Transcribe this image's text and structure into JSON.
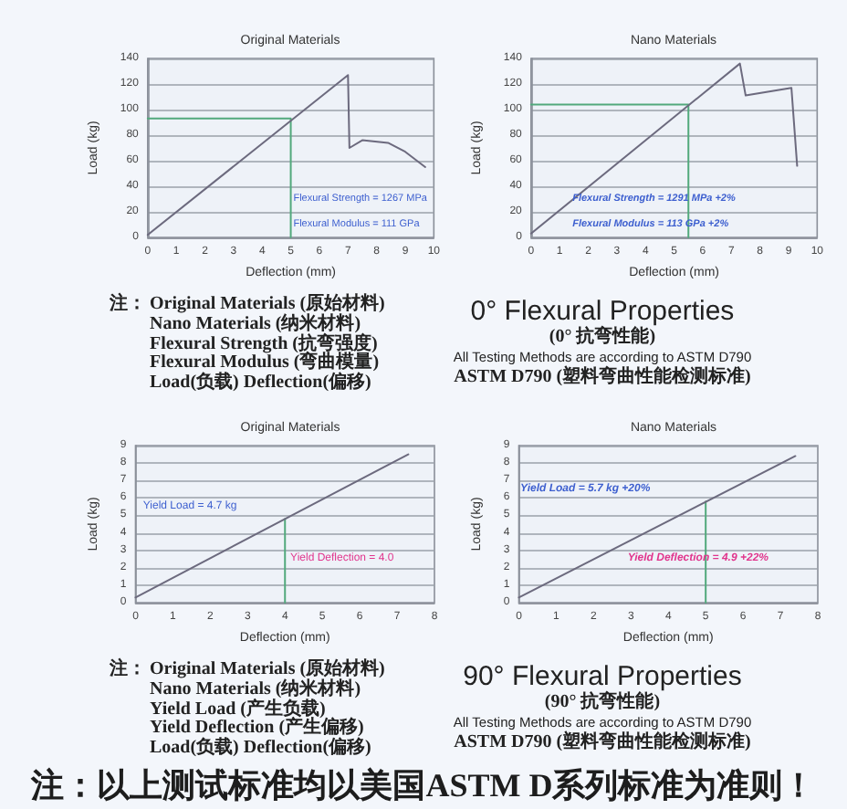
{
  "chart_data": [
    {
      "type": "line",
      "title": "Original Materials",
      "xlabel": "Deflection (mm)",
      "ylabel": "Load (kg)",
      "xlim": [
        0,
        10
      ],
      "xticks": [
        0,
        1,
        2,
        3,
        4,
        5,
        6,
        7,
        8,
        9,
        10
      ],
      "ylim": [
        0,
        140
      ],
      "yticks": [
        0,
        20,
        40,
        60,
        80,
        100,
        120,
        140
      ],
      "grid": "y",
      "series": [
        {
          "color": "#6c6a7e",
          "x": [
            0,
            7,
            7.05,
            7.5,
            8.4,
            9,
            9.7
          ],
          "values": [
            2,
            127,
            70,
            76,
            74,
            67,
            55
          ]
        },
        {
          "color": "#52a97c",
          "x": [
            0,
            5,
            5
          ],
          "values": [
            93,
            93,
            0
          ]
        }
      ],
      "annotations": [
        "Flexural Strength = 1267 MPa",
        "Flexural Modulus = 111 GPa"
      ]
    },
    {
      "type": "line",
      "title": "Nano Materials",
      "xlabel": "Deflection (mm)",
      "ylabel": "Load (kg)",
      "xlim": [
        0,
        10
      ],
      "xticks": [
        0,
        1,
        2,
        3,
        4,
        5,
        6,
        7,
        8,
        9,
        10
      ],
      "ylim": [
        0,
        140
      ],
      "yticks": [
        0,
        20,
        40,
        60,
        80,
        100,
        120,
        140
      ],
      "grid": "y",
      "series": [
        {
          "color": "#6c6a7e",
          "x": [
            0,
            7.3,
            7.5,
            9.1,
            9.3
          ],
          "values": [
            3,
            136,
            111,
            117,
            56
          ]
        },
        {
          "color": "#52a97c",
          "x": [
            0,
            5.5,
            5.5
          ],
          "values": [
            104,
            104,
            0
          ]
        }
      ],
      "annotations": [
        "Flexural Strength = 1291 MPa +2%",
        "Flexural Modulus = 113 GPa +2%"
      ]
    },
    {
      "type": "other",
      "title": "0° Flexural Properties",
      "subtitle": "(0° 抗弯性能)",
      "annotations": [
        "注：",
        "Original Materials (原始材料)",
        "Nano Materials (纳米材料)",
        "Flexural Strength (抗弯强度)",
        "Flexural Modulus (弯曲模量)",
        "Load(负载) Deflection(偏移)",
        "All Testing Methods are according to ASTM D790",
        "ASTM D790 (塑料弯曲性能检测标准)"
      ]
    },
    {
      "type": "line",
      "title": "Original Materials",
      "xlabel": "Deflection (mm)",
      "ylabel": "Load (kg)",
      "xlim": [
        0,
        8
      ],
      "xticks": [
        0,
        1,
        2,
        3,
        4,
        5,
        6,
        7,
        8
      ],
      "ylim": [
        0,
        9
      ],
      "yticks": [
        0,
        1,
        2,
        3,
        4,
        5,
        6,
        7,
        8,
        9
      ],
      "grid": "y",
      "series": [
        {
          "color": "#6c6a7e",
          "x": [
            0,
            7.3
          ],
          "values": [
            0.3,
            8.5
          ]
        },
        {
          "color": "#52a97c",
          "x": [
            4,
            4
          ],
          "values": [
            0,
            4.8
          ]
        }
      ],
      "annotations": [
        "Yield Load = 4.7 kg",
        "Yield Deflection = 4.0"
      ]
    },
    {
      "type": "line",
      "title": "Nano Materials",
      "xlabel": "Deflection (mm)",
      "ylabel": "Load (kg)",
      "xlim": [
        0,
        8
      ],
      "xticks": [
        0,
        1,
        2,
        3,
        4,
        5,
        6,
        7,
        8
      ],
      "ylim": [
        0,
        9
      ],
      "yticks": [
        0,
        1,
        2,
        3,
        4,
        5,
        6,
        7,
        8,
        9
      ],
      "grid": "y",
      "series": [
        {
          "color": "#6c6a7e",
          "x": [
            0,
            7.4
          ],
          "values": [
            0.3,
            8.4
          ]
        },
        {
          "color": "#52a97c",
          "x": [
            5,
            5
          ],
          "values": [
            0,
            5.8
          ]
        }
      ],
      "annotations": [
        "Yield Load = 5.7 kg +20%",
        "Yield Deflection = 4.9 +22%"
      ]
    },
    {
      "type": "other",
      "title": "90° Flexural Properties",
      "subtitle": "(90° 抗弯性能)",
      "annotations": [
        "注：",
        "Original Materials (原始材料)",
        "Nano Materials (纳米材料)",
        "Yield Load (产生负载)",
        "Yield Deflection (产生偏移)",
        "Load(负载) Deflection(偏移)",
        "All Testing Methods are according to ASTM D790",
        "ASTM D790 (塑料弯曲性能检测标准)"
      ]
    },
    {
      "type": "other",
      "annotations": [
        "注：以上测试标准均以美国ASTM D系列标准为准则！"
      ]
    }
  ]
}
